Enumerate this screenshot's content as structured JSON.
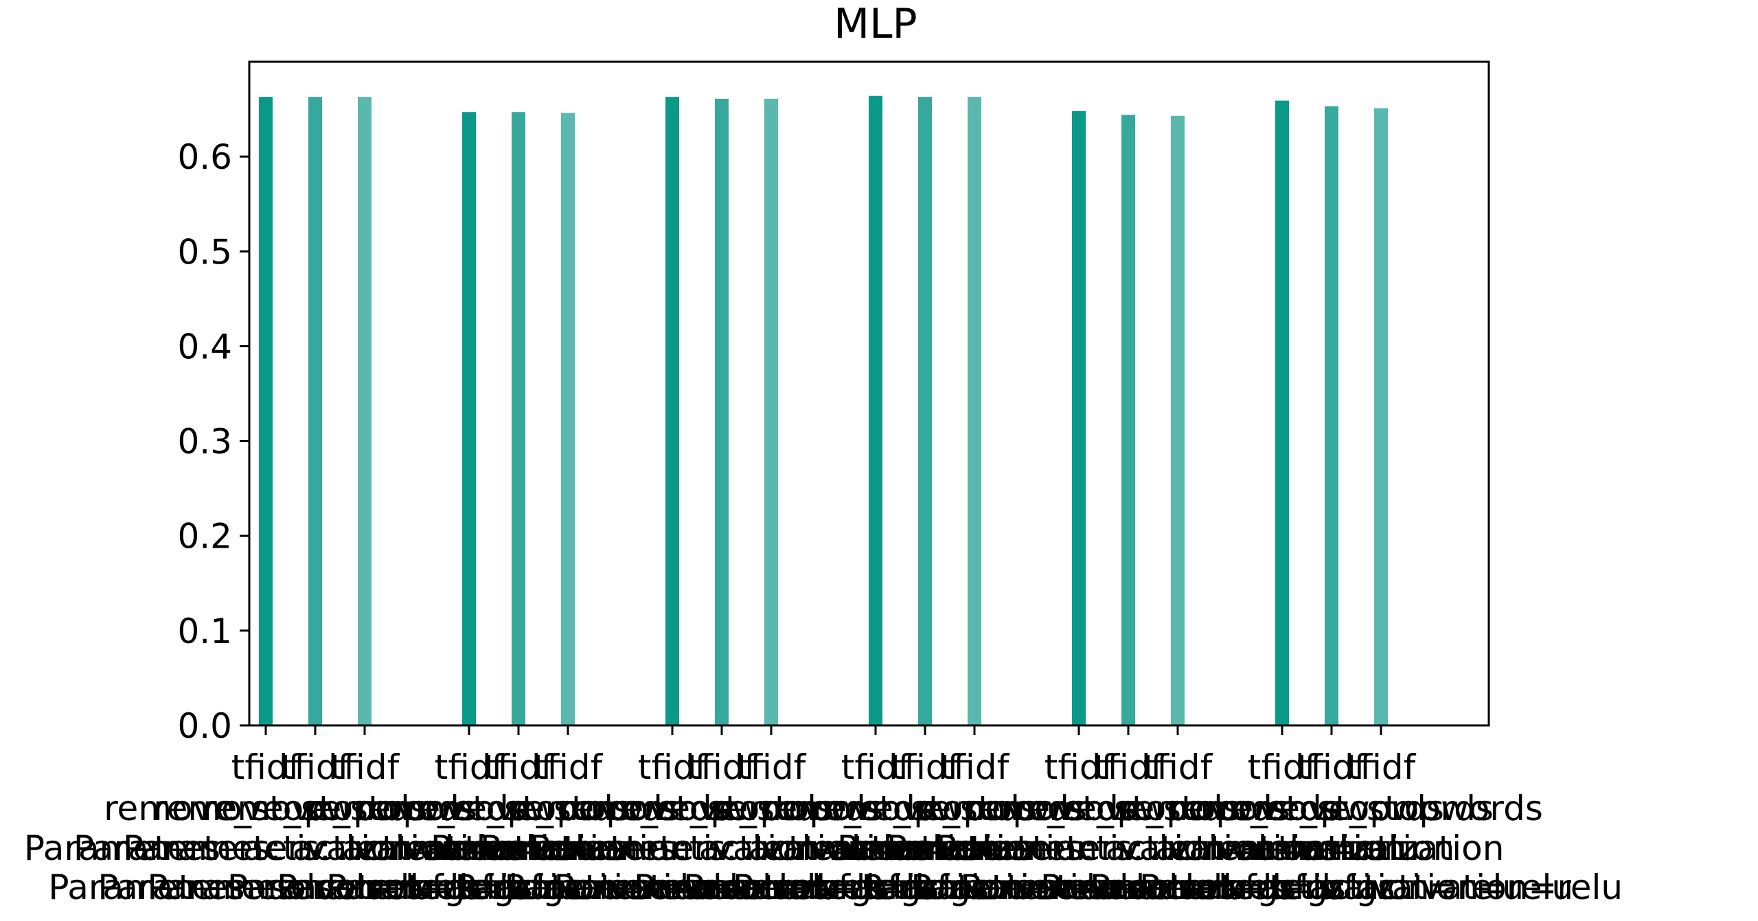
{
  "chart_data": {
    "type": "bar",
    "title": "MLP",
    "xlabel": "",
    "ylabel": "",
    "ylim": [
      0,
      0.7
    ],
    "yticks": [
      "0.0",
      "0.1",
      "0.2",
      "0.3",
      "0.4",
      "0.5",
      "0.6"
    ],
    "grid": false,
    "legend": "none",
    "colors": [
      "#0b9a8a",
      "#37a89c",
      "#5ab8ae"
    ],
    "groups": [
      {
        "bars": [
          {
            "value": 0.663,
            "label": [
              "tfidf",
              "remove_stopwords",
              "Parameters: activation=relu",
              "Parameters: solver=lbfgs"
            ]
          },
          {
            "value": 0.663,
            "label": [
              "tfidf",
              "remove_stopwords",
              "Parameters: activation=relu",
              "Parameters: solver=lbfgs"
            ]
          },
          {
            "value": 0.663,
            "label": [
              "tfidf",
              "remove_stopwords",
              "Parameters: activation=relu",
              "Parameters: solver=lbfgs"
            ]
          }
        ]
      },
      {
        "bars": [
          {
            "value": 0.647,
            "label": [
              "tfidf",
              "remove_stopwords",
              "lemmatization",
              "Parameters: activation=relu"
            ]
          },
          {
            "value": 0.647,
            "label": [
              "tfidf",
              "remove_stopwords",
              "lemmatization",
              "Parameters: activation=relu"
            ]
          },
          {
            "value": 0.646,
            "label": [
              "tfidf",
              "remove_stopwords",
              "lemmatization",
              "Parameters: activation=relu"
            ]
          }
        ]
      },
      {
        "bars": [
          {
            "value": 0.663,
            "label": [
              "tfidf",
              "remove_stopwords",
              "Parameters: activation=relu",
              "Parameters: solver=lbfgs"
            ]
          },
          {
            "value": 0.661,
            "label": [
              "tfidf",
              "remove_stopwords",
              "Parameters: activation=relu",
              "Parameters: solver=lbfgs"
            ]
          },
          {
            "value": 0.661,
            "label": [
              "tfidf",
              "remove_stopwords",
              "Parameters: activation=relu",
              "Parameters: solver=lbfgs"
            ]
          }
        ]
      },
      {
        "bars": [
          {
            "value": 0.664,
            "label": [
              "tfidf",
              "remove_stopwords",
              "lemmatization",
              "Parameters: activation=relu"
            ]
          },
          {
            "value": 0.663,
            "label": [
              "tfidf",
              "remove_stopwords",
              "lemmatization",
              "Parameters: activation=relu"
            ]
          },
          {
            "value": 0.663,
            "label": [
              "tfidf",
              "remove_stopwords",
              "lemmatization",
              "Parameters: activation=relu"
            ]
          }
        ]
      },
      {
        "bars": [
          {
            "value": 0.648,
            "label": [
              "tfidf",
              "remove_stopwords",
              "Parameters: activation=relu",
              "Parameters: solver=lbfgs"
            ]
          },
          {
            "value": 0.644,
            "label": [
              "tfidf",
              "remove_stopwords",
              "Parameters: activation=relu",
              "Parameters: solver=lbfgs"
            ]
          },
          {
            "value": 0.643,
            "label": [
              "tfidf",
              "remove_stopwords",
              "Parameters: activation=relu",
              "Parameters: solver=lbfgs"
            ]
          }
        ]
      },
      {
        "bars": [
          {
            "value": 0.659,
            "label": [
              "tfidf",
              "remove_stopwords",
              "lemmatization",
              "Parameters: activation=relu"
            ]
          },
          {
            "value": 0.653,
            "label": [
              "tfidf",
              "remove_stopwords",
              "lemmatization",
              "Parameters: activation=relu"
            ]
          },
          {
            "value": 0.651,
            "label": [
              "tfidf",
              "remove_stopwords",
              "lemmatization",
              "Parameters: activation=relu"
            ]
          }
        ]
      }
    ]
  }
}
